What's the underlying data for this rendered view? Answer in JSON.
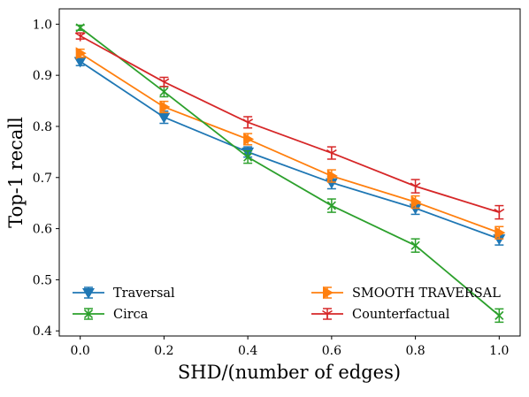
{
  "chart_data": {
    "type": "line",
    "xlabel": "SHD/(number of edges)",
    "ylabel": "Top-1 recall",
    "xlim": [
      -0.05,
      1.05
    ],
    "ylim": [
      0.39,
      1.03
    ],
    "xticks": [
      0.0,
      0.2,
      0.4,
      0.6,
      0.8,
      1.0
    ],
    "xtick_labels": [
      "0.0",
      "0.2",
      "0.4",
      "0.6",
      "0.8",
      "1.0"
    ],
    "yticks": [
      0.4,
      0.5,
      0.6,
      0.7,
      0.8,
      0.9,
      1.0
    ],
    "ytick_labels": [
      "0.4",
      "0.5",
      "0.6",
      "0.7",
      "0.8",
      "0.9",
      "1.0"
    ],
    "grid": false,
    "legend_location": "lower, two columns",
    "x": [
      0.0,
      0.2,
      0.4,
      0.6,
      0.8,
      1.0
    ],
    "series": [
      {
        "name": "Traversal",
        "color": "#1f77b4",
        "marker": "triangle-down",
        "values": [
          0.927,
          0.818,
          0.75,
          0.69,
          0.64,
          0.58
        ],
        "errors": [
          0.008,
          0.012,
          0.01,
          0.012,
          0.012,
          0.012
        ]
      },
      {
        "name": "SMOOTH TRAVERSAL",
        "color": "#ff7f0e",
        "marker": "triangle-right",
        "values": [
          0.943,
          0.838,
          0.775,
          0.703,
          0.652,
          0.592
        ],
        "errors": [
          0.008,
          0.011,
          0.011,
          0.012,
          0.012,
          0.012
        ]
      },
      {
        "name": "Circa",
        "color": "#2ca02c",
        "marker": "x",
        "values": [
          0.993,
          0.868,
          0.74,
          0.645,
          0.567,
          0.43
        ],
        "errors": [
          0.005,
          0.01,
          0.012,
          0.013,
          0.013,
          0.013
        ]
      },
      {
        "name": "Counterfactual",
        "color": "#d62728",
        "marker": "tri-down",
        "values": [
          0.977,
          0.887,
          0.808,
          0.748,
          0.683,
          0.632
        ],
        "errors": [
          0.006,
          0.009,
          0.011,
          0.012,
          0.013,
          0.013
        ]
      }
    ]
  }
}
